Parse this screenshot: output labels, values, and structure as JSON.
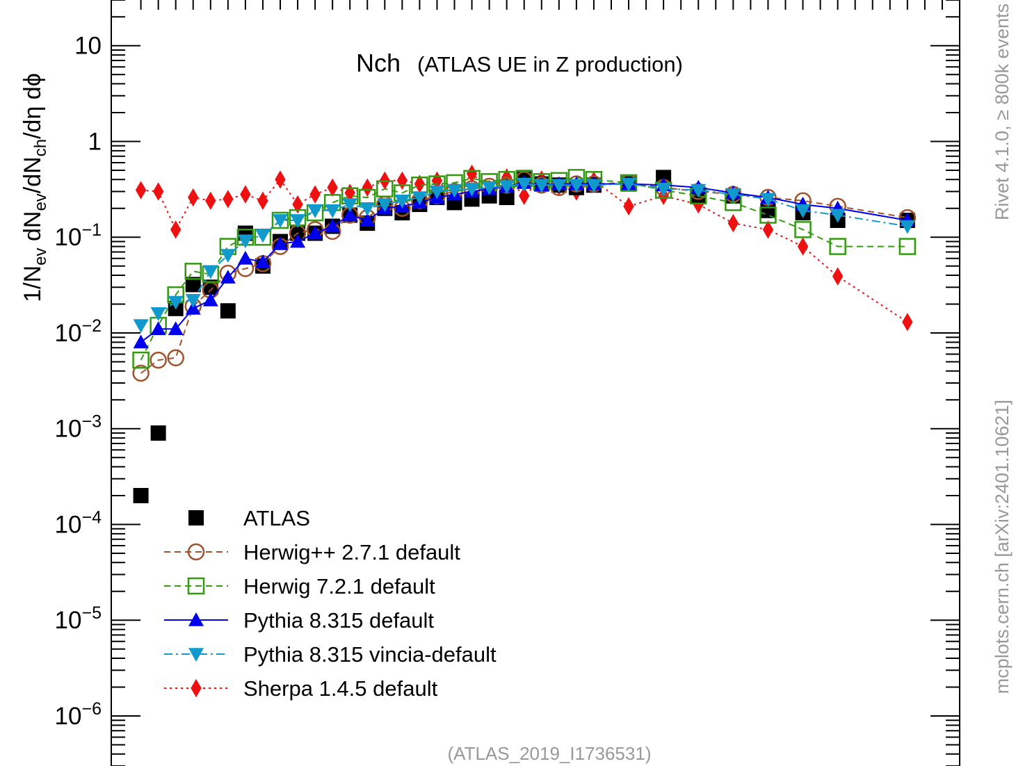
{
  "chart_data": {
    "type": "scatter",
    "title": "Nch",
    "subtitle": "(ATLAS UE in Z production)",
    "ylabel": "1/N_ev dN_ev/dN_ch/dη dϕ",
    "ylim": [
      3e-07,
      30
    ],
    "yscale": "log",
    "ytick_labels": [
      {
        "v": 10,
        "label": "10"
      },
      {
        "v": 1,
        "label": "1"
      },
      {
        "v": 0.1,
        "label": "10−1"
      },
      {
        "v": 0.01,
        "label": "10−2"
      },
      {
        "v": 0.001,
        "label": "10−3"
      },
      {
        "v": 0.0001,
        "label": "10−4"
      },
      {
        "v": 1e-05,
        "label": "10−5"
      },
      {
        "v": 1e-06,
        "label": "10−6"
      }
    ],
    "x": [
      0.5,
      1.5,
      2.5,
      3.5,
      4.5,
      5.5,
      6.5,
      7.5,
      8.5,
      9.5,
      10.5,
      11.5,
      12.5,
      13.5,
      14.5,
      15.5,
      16.5,
      17.5,
      18.5,
      19.5,
      20.5,
      21.5,
      22.5,
      23.5,
      24.5,
      25.5,
      26.5,
      28.5,
      30.5,
      32.5,
      34.5,
      36.5,
      38.5,
      40.5,
      44.5
    ],
    "xlim": [
      -1.2,
      47.5
    ],
    "x_ticks": [
      0.5,
      1.5,
      2.5,
      3.5,
      4.5,
      5.5,
      6.5,
      7.5,
      8.5,
      9.5,
      10.5,
      11.5,
      12.5,
      13.5,
      14.5,
      15.5,
      16.5,
      17.5,
      18.5,
      19.5,
      20.5,
      21.5,
      22.5,
      23.5,
      24.5,
      25.5,
      26.5,
      27.5,
      28.5,
      29.5,
      30.5,
      31.5,
      32.5,
      33.5,
      34.5,
      35.5,
      36.5,
      37.5,
      38.5,
      39.5,
      40.5,
      41.5,
      42.5,
      43.5,
      44.5,
      45.5,
      46.5
    ],
    "series": [
      {
        "name": "ATLAS",
        "color": "#000000",
        "marker": "square-filled",
        "line": "none",
        "values": [
          0.0002,
          0.0009,
          0.018,
          0.032,
          0.03,
          0.017,
          0.11,
          0.05,
          0.09,
          0.11,
          0.11,
          0.13,
          0.17,
          0.14,
          0.2,
          0.18,
          0.22,
          0.26,
          0.23,
          0.25,
          0.27,
          0.26,
          0.42,
          0.36,
          0.35,
          0.33,
          0.35,
          0.36,
          0.42,
          0.27,
          0.27,
          0.19,
          0.18,
          0.15,
          0.15
        ]
      },
      {
        "name": "Herwig++ 2.7.1 default",
        "color": "#a0522d",
        "marker": "circle-open",
        "line": "dashed",
        "values": [
          0.0038,
          0.0052,
          0.0055,
          0.019,
          0.028,
          0.042,
          0.047,
          0.053,
          0.08,
          0.11,
          0.12,
          0.115,
          0.17,
          0.16,
          0.22,
          0.2,
          0.24,
          0.27,
          0.3,
          0.32,
          0.34,
          0.35,
          0.4,
          0.35,
          0.33,
          0.36,
          0.36,
          0.37,
          0.33,
          0.3,
          0.28,
          0.26,
          0.24,
          0.21,
          0.16
        ]
      },
      {
        "name": "Herwig 7.2.1 default",
        "color": "#339911",
        "marker": "square-open",
        "line": "dashed",
        "values": [
          0.0052,
          0.012,
          0.025,
          0.044,
          0.041,
          0.08,
          0.1,
          0.1,
          0.15,
          0.16,
          0.18,
          0.23,
          0.27,
          0.26,
          0.32,
          0.29,
          0.35,
          0.36,
          0.37,
          0.41,
          0.38,
          0.4,
          0.41,
          0.38,
          0.39,
          0.42,
          0.4,
          0.37,
          0.31,
          0.27,
          0.23,
          0.17,
          0.12,
          0.08,
          0.08
        ]
      },
      {
        "name": "Pythia 8.315 default",
        "color": "#0000ee",
        "marker": "triangle-up-filled",
        "line": "solid",
        "values": [
          0.008,
          0.011,
          0.011,
          0.018,
          0.022,
          0.038,
          0.06,
          0.055,
          0.085,
          0.09,
          0.11,
          0.13,
          0.17,
          0.15,
          0.2,
          0.21,
          0.23,
          0.26,
          0.28,
          0.3,
          0.32,
          0.34,
          0.37,
          0.35,
          0.36,
          0.36,
          0.36,
          0.36,
          0.35,
          0.33,
          0.29,
          0.26,
          0.22,
          0.2,
          0.15
        ]
      },
      {
        "name": "Pythia 8.315 vincia-default",
        "color": "#1199cc",
        "marker": "triangle-down-filled",
        "line": "dashdot",
        "values": [
          0.012,
          0.016,
          0.021,
          0.022,
          0.044,
          0.065,
          0.092,
          0.105,
          0.15,
          0.15,
          0.19,
          0.19,
          0.22,
          0.2,
          0.22,
          0.24,
          0.26,
          0.3,
          0.31,
          0.32,
          0.33,
          0.34,
          0.36,
          0.35,
          0.35,
          0.35,
          0.35,
          0.36,
          0.32,
          0.31,
          0.28,
          0.25,
          0.19,
          0.17,
          0.13
        ]
      },
      {
        "name": "Sherpa 1.4.5 default",
        "color": "#ee1111",
        "marker": "diamond-filled",
        "line": "dotted",
        "values": [
          0.31,
          0.3,
          0.12,
          0.26,
          0.24,
          0.25,
          0.28,
          0.24,
          0.4,
          0.22,
          0.28,
          0.33,
          0.29,
          0.33,
          0.39,
          0.39,
          0.36,
          0.39,
          0.27,
          0.46,
          0.32,
          0.42,
          0.27,
          0.4,
          0.34,
          0.3,
          0.39,
          0.21,
          0.27,
          0.22,
          0.14,
          0.12,
          0.08,
          0.039,
          0.013
        ]
      }
    ],
    "legend_position": "bottom-left",
    "annotations": {
      "footer": "(ATLAS_2019_I1736531)",
      "right_top": "Rivet 4.1.0, ≥ 800k events",
      "right_bottom": "mcplots.cern.ch [arXiv:2401.10621]"
    }
  }
}
